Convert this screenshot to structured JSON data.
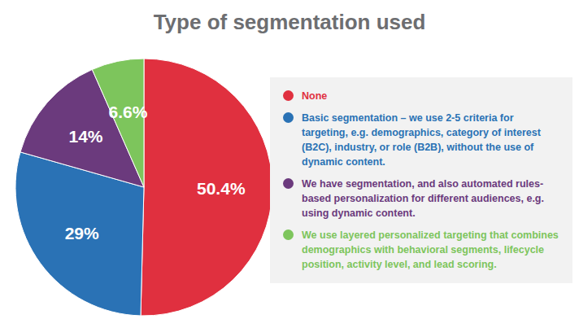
{
  "chart_data": {
    "type": "pie",
    "title": "Type of segmentation used",
    "categories": [
      "None",
      "Basic segmentation – we use 2-5 criteria for targeting, e.g. demographics, category of interest (B2C), industry, or role (B2B), without the use of dynamic content.",
      "We have segmentation, and also automated rules-based personalization for different audiences, e.g. using dynamic content.",
      "We use layered personalized targeting that combines demographics with behavioral segments, lifecycle position, activity level, and lead scoring."
    ],
    "values": [
      50.4,
      29,
      14,
      6.6
    ],
    "value_labels": [
      "50.4%",
      "29%",
      "14%",
      "6.6%"
    ],
    "colors": [
      "#e0303f",
      "#2a72b5",
      "#6b3a7d",
      "#7dc55c"
    ],
    "data_labels": true,
    "legend": "right"
  }
}
